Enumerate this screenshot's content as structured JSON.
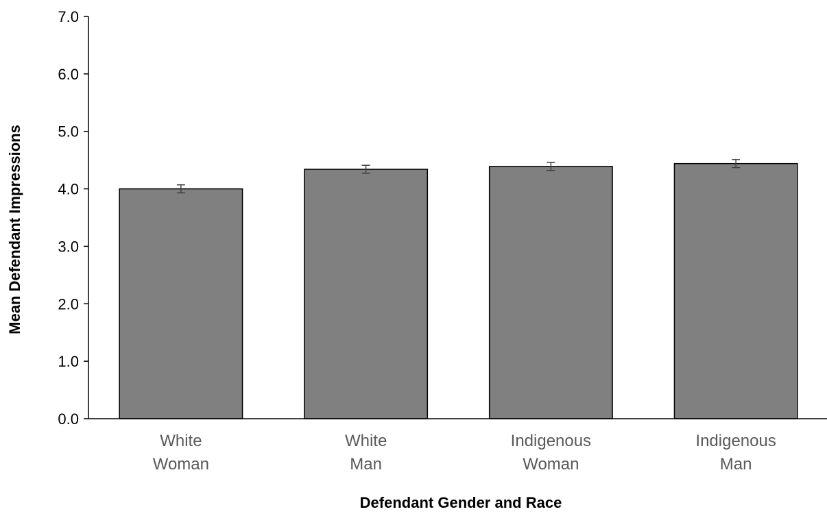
{
  "chart_data": {
    "type": "bar",
    "title": "",
    "xlabel": "Defendant Gender and Race",
    "ylabel": "Mean Defendant Impressions",
    "categories": [
      [
        "White",
        "Woman"
      ],
      [
        "White",
        "Man"
      ],
      [
        "Indigenous",
        "Woman"
      ],
      [
        "Indigenous",
        "Man"
      ]
    ],
    "values": [
      4.0,
      4.34,
      4.39,
      4.44
    ],
    "error": [
      0.07,
      0.07,
      0.07,
      0.07
    ],
    "ylim": [
      0,
      7
    ],
    "yticks": [
      "0.0",
      "1.0",
      "2.0",
      "3.0",
      "4.0",
      "5.0",
      "6.0",
      "7.0"
    ],
    "grid": false,
    "legend": "none",
    "colors": {
      "bar_fill": "#808080",
      "bar_stroke": "#000000",
      "axis": "#000000",
      "error_bar": "#404040",
      "category_text": "#595959"
    }
  }
}
